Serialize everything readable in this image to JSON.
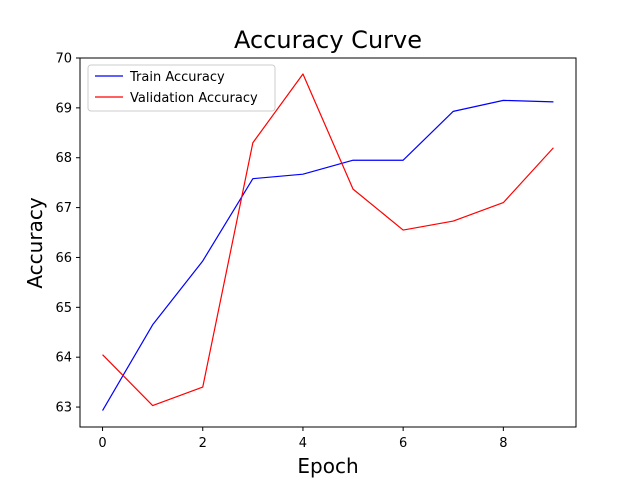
{
  "chart_data": {
    "type": "line",
    "title": "Accuracy Curve",
    "xlabel": "Epoch",
    "ylabel": "Accuracy",
    "x": [
      0,
      1,
      2,
      3,
      4,
      5,
      6,
      7,
      8,
      9
    ],
    "xlim": [
      -0.45,
      9.45
    ],
    "ylim": [
      62.6,
      70.0
    ],
    "xticks": [
      0,
      2,
      4,
      6,
      8
    ],
    "yticks": [
      63,
      64,
      65,
      66,
      67,
      68,
      69,
      70
    ],
    "grid": false,
    "legend_position": "top-left",
    "series": [
      {
        "name": "Train Accuracy",
        "color": "#0000ff",
        "values": [
          62.93,
          64.65,
          65.93,
          67.58,
          67.67,
          67.95,
          67.95,
          68.93,
          69.15,
          69.12
        ]
      },
      {
        "name": "Validation Accuracy",
        "color": "#ff0000",
        "values": [
          64.05,
          63.03,
          63.4,
          68.3,
          69.68,
          67.37,
          66.55,
          66.73,
          67.1,
          68.2
        ]
      }
    ]
  }
}
